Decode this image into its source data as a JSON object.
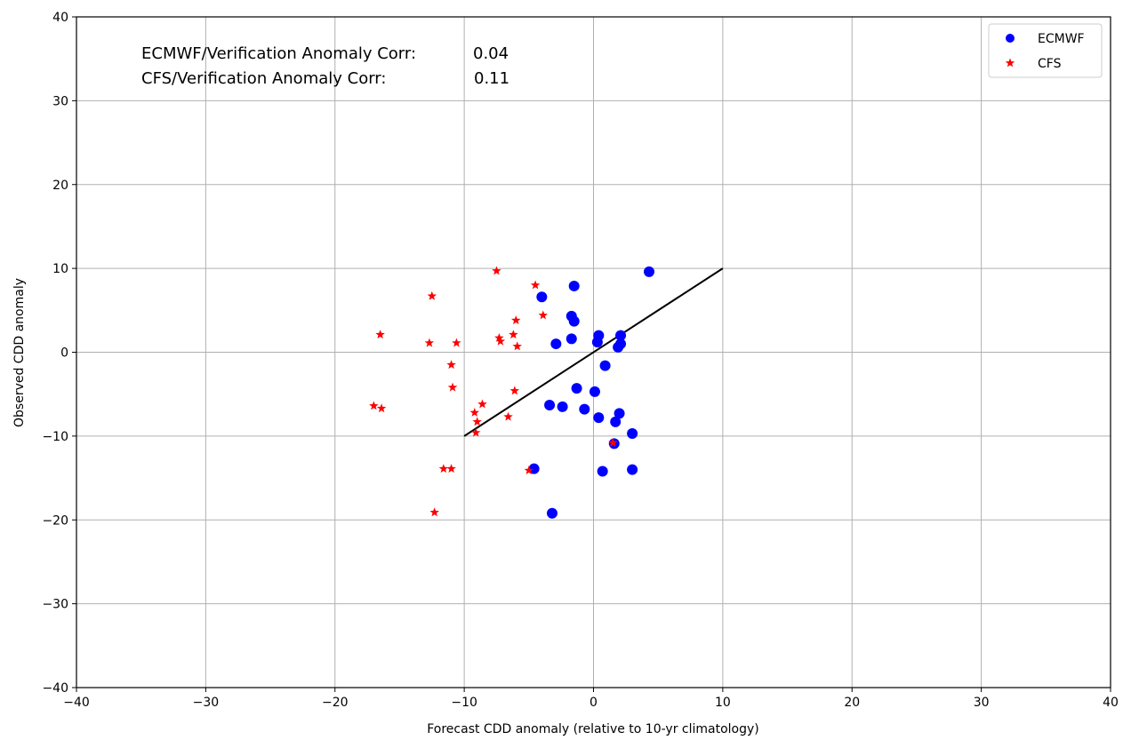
{
  "chart_data": {
    "type": "scatter",
    "xlabel": "Forecast CDD anomaly (relative to 10-yr climatology)",
    "ylabel": "Observed CDD anomaly",
    "xlim": [
      -40,
      40
    ],
    "ylim": [
      -40,
      40
    ],
    "xticks": [
      -40,
      -30,
      -20,
      -10,
      0,
      10,
      20,
      30,
      40
    ],
    "yticks": [
      -40,
      -30,
      -20,
      -10,
      0,
      10,
      20,
      30,
      40
    ],
    "grid": true,
    "legend_position": "top-right",
    "annotations": [
      {
        "label": "ECMWF/Verification Anomaly Corr:",
        "value": "0.04"
      },
      {
        "label": "CFS/Verification Anomaly Corr:",
        "value": "0.11"
      }
    ],
    "reference_line": {
      "x": [
        -10,
        10
      ],
      "y": [
        -10,
        10
      ],
      "color": "#000000"
    },
    "series": [
      {
        "name": "ECMWF",
        "marker": "circle",
        "color": "#0000ff",
        "points": [
          [
            4.3,
            9.6
          ],
          [
            -4.0,
            6.6
          ],
          [
            -1.5,
            7.9
          ],
          [
            -1.7,
            4.3
          ],
          [
            -1.5,
            3.7
          ],
          [
            -1.7,
            1.6
          ],
          [
            -2.9,
            1.0
          ],
          [
            0.4,
            2.0
          ],
          [
            0.3,
            1.2
          ],
          [
            2.1,
            2.0
          ],
          [
            2.1,
            1.0
          ],
          [
            1.9,
            0.6
          ],
          [
            0.9,
            -1.6
          ],
          [
            -1.3,
            -4.3
          ],
          [
            0.1,
            -4.7
          ],
          [
            -3.4,
            -6.3
          ],
          [
            -2.4,
            -6.5
          ],
          [
            -0.7,
            -6.8
          ],
          [
            0.4,
            -7.8
          ],
          [
            2.0,
            -7.3
          ],
          [
            1.7,
            -8.3
          ],
          [
            3.0,
            -9.7
          ],
          [
            1.6,
            -10.9
          ],
          [
            -4.6,
            -13.9
          ],
          [
            0.7,
            -14.2
          ],
          [
            3.0,
            -14.0
          ],
          [
            -3.2,
            -19.2
          ]
        ]
      },
      {
        "name": "CFS",
        "marker": "star",
        "color": "#ff0000",
        "points": [
          [
            -7.5,
            9.7
          ],
          [
            -4.5,
            8.0
          ],
          [
            -12.5,
            6.7
          ],
          [
            -6.0,
            3.8
          ],
          [
            -3.9,
            4.4
          ],
          [
            -16.5,
            2.1
          ],
          [
            -12.7,
            1.1
          ],
          [
            -10.6,
            1.1
          ],
          [
            -7.3,
            1.7
          ],
          [
            -7.2,
            1.3
          ],
          [
            -6.2,
            2.1
          ],
          [
            -5.9,
            0.7
          ],
          [
            -11.0,
            -1.5
          ],
          [
            -10.9,
            -4.2
          ],
          [
            -6.1,
            -4.6
          ],
          [
            -17.0,
            -6.4
          ],
          [
            -16.4,
            -6.7
          ],
          [
            -8.6,
            -6.2
          ],
          [
            -9.2,
            -7.2
          ],
          [
            -9.0,
            -8.3
          ],
          [
            -6.6,
            -7.7
          ],
          [
            -9.1,
            -9.6
          ],
          [
            1.5,
            -10.8
          ],
          [
            -11.6,
            -13.9
          ],
          [
            -11.0,
            -13.9
          ],
          [
            -5.0,
            -14.1
          ],
          [
            -12.3,
            -19.1
          ]
        ]
      }
    ]
  }
}
